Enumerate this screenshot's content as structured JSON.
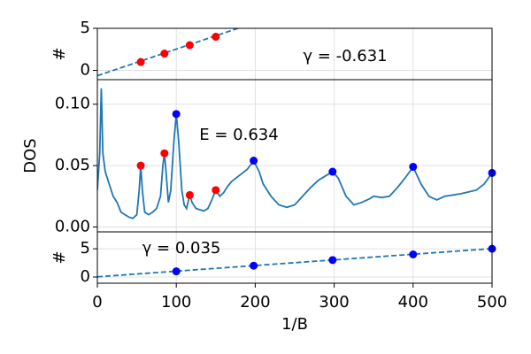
{
  "chart_data": [
    {
      "type": "line",
      "ylabel": "#",
      "annotation": "γ = -0.631",
      "xlim": [
        0,
        500
      ],
      "ylim": [
        -1.1,
        5
      ],
      "yticks": [
        0,
        5
      ],
      "grid": true,
      "series": [
        {
          "color": "#1f77b4",
          "style": "dashed",
          "x": [
            0,
            180
          ],
          "values": [
            -0.631,
            5.06
          ]
        },
        {
          "color": "#ff0000",
          "style": "markers",
          "x": [
            55,
            85,
            117,
            150
          ],
          "values": [
            1,
            2,
            3,
            4
          ]
        }
      ]
    },
    {
      "type": "line",
      "ylabel": "DOS",
      "annotation": "E = 0.634",
      "xlim": [
        0,
        500
      ],
      "ylim": [
        -0.004,
        0.12
      ],
      "yticks": [
        {
          "value": 0,
          "label": "0.00"
        },
        {
          "value": 0.05,
          "label": "0.05"
        },
        {
          "value": 0.1,
          "label": "0.10"
        }
      ],
      "grid": true,
      "series": [
        {
          "color": "#1f77b4",
          "style": "solid",
          "x": [
            0,
            3,
            5,
            7,
            10,
            15,
            20,
            25,
            30,
            35,
            40,
            45,
            50,
            53,
            55,
            57,
            60,
            65,
            70,
            75,
            80,
            83,
            85,
            87,
            90,
            93,
            97,
            100,
            103,
            107,
            110,
            113,
            117,
            120,
            125,
            130,
            135,
            140,
            145,
            150,
            155,
            160,
            165,
            170,
            180,
            190,
            198,
            205,
            210,
            220,
            230,
            240,
            250,
            260,
            270,
            280,
            290,
            298,
            305,
            315,
            325,
            335,
            345,
            350,
            360,
            370,
            380,
            390,
            400,
            410,
            420,
            430,
            440,
            460,
            480,
            490,
            500
          ],
          "values": [
            0.03,
            0.06,
            0.113,
            0.06,
            0.045,
            0.035,
            0.025,
            0.02,
            0.012,
            0.01,
            0.008,
            0.007,
            0.01,
            0.03,
            0.05,
            0.03,
            0.012,
            0.01,
            0.012,
            0.015,
            0.025,
            0.05,
            0.06,
            0.045,
            0.02,
            0.03,
            0.07,
            0.092,
            0.07,
            0.03,
            0.018,
            0.015,
            0.026,
            0.02,
            0.015,
            0.014,
            0.013,
            0.015,
            0.022,
            0.03,
            0.025,
            0.028,
            0.033,
            0.037,
            0.042,
            0.047,
            0.054,
            0.045,
            0.035,
            0.025,
            0.018,
            0.016,
            0.018,
            0.025,
            0.032,
            0.038,
            0.042,
            0.045,
            0.04,
            0.025,
            0.018,
            0.02,
            0.023,
            0.025,
            0.024,
            0.025,
            0.032,
            0.04,
            0.049,
            0.035,
            0.025,
            0.022,
            0.025,
            0.027,
            0.03,
            0.035,
            0.044
          ]
        },
        {
          "color": "#ff0000",
          "style": "markers",
          "x": [
            55,
            85,
            117,
            150
          ],
          "values": [
            0.05,
            0.06,
            0.026,
            0.03
          ]
        },
        {
          "color": "#0000ff",
          "style": "markers",
          "x": [
            100,
            198,
            298,
            400,
            500
          ],
          "values": [
            0.092,
            0.054,
            0.045,
            0.049,
            0.044
          ]
        }
      ]
    },
    {
      "type": "line",
      "ylabel": "#",
      "annotation": "γ = 0.035",
      "xlabel": "1/B",
      "xlim": [
        0,
        500
      ],
      "ylim": [
        -1.1,
        8
      ],
      "yticks": [
        0,
        5
      ],
      "xticks": [
        0,
        100,
        200,
        300,
        400,
        500
      ],
      "grid": true,
      "series": [
        {
          "color": "#1f77b4",
          "style": "dashed",
          "x": [
            0,
            500
          ],
          "values": [
            0.035,
            5.035
          ]
        },
        {
          "color": "#0000ff",
          "style": "markers",
          "x": [
            100,
            198,
            298,
            400,
            500
          ],
          "values": [
            1,
            2,
            3,
            4,
            5
          ]
        }
      ]
    }
  ]
}
